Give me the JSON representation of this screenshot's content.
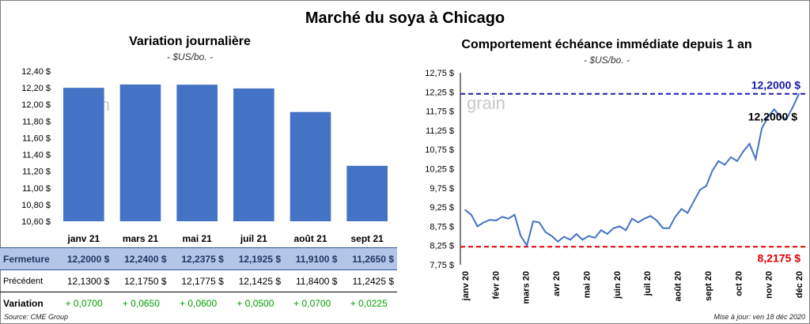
{
  "page": {
    "title": "Marché du soya à Chicago",
    "source": "Source: CME Group",
    "updated": "Mise à jour: ven 18 déc 2020",
    "watermark": "grain"
  },
  "left": {
    "title": "Variation  journalière",
    "units": "- $US/bo. -"
  },
  "right": {
    "title": "Comportement  échéance immédiate depuis 1 an",
    "units": "- $US/bo. -"
  },
  "table": {
    "rows": [
      {
        "label": "Fermeture",
        "cells": [
          "12,2000  $",
          "12,2400  $",
          "12,2375  $",
          "12,1925  $",
          "11,9100  $",
          "11,2650  $"
        ]
      },
      {
        "label": "Précédent",
        "cells": [
          "12,1300  $",
          "12,1750  $",
          "12,1775  $",
          "12,1425  $",
          "11,8400  $",
          "11,2425  $"
        ]
      },
      {
        "label": "Variation",
        "cells": [
          "+ 0,0700",
          "+ 0,0650",
          "+ 0,0600",
          "+ 0,0500",
          "+ 0,0700",
          "+ 0,0225"
        ]
      }
    ]
  },
  "chart_data": [
    {
      "type": "bar",
      "title": "Variation  journalière",
      "subtitle": "- $US/bo. -",
      "categories": [
        "janv 21",
        "mars 21",
        "mai 21",
        "juil 21",
        "août 21",
        "sept 21"
      ],
      "values": [
        12.2,
        12.24,
        12.2375,
        12.1925,
        11.91,
        11.265
      ],
      "ylim": [
        10.6,
        12.4
      ],
      "yticks": [
        "10,60 $",
        "10,80 $",
        "11,00 $",
        "11,20 $",
        "11,40 $",
        "11,60 $",
        "11,80 $",
        "12,00 $",
        "12,20 $",
        "12,40 $"
      ],
      "bar_color": "#4472c4",
      "grid": false
    },
    {
      "type": "line",
      "title": "Comportement  échéance immédiate depuis 1 an",
      "subtitle": "- $US/bo. -",
      "ylim": [
        7.75,
        12.75
      ],
      "yticks": [
        "7,75 $",
        "8,25 $",
        "8,75 $",
        "9,25 $",
        "9,75 $",
        "10,25 $",
        "10,75 $",
        "11,25 $",
        "11,75 $",
        "12,25 $",
        "12,75 $"
      ],
      "xticks": [
        "janv 20",
        "févr 20",
        "mars 20",
        "avr 20",
        "mai 20",
        "juin 20",
        "juil 20",
        "août 20",
        "sept 20",
        "oct 20",
        "nov 20",
        "déc 20"
      ],
      "line_color": "#4472c4",
      "series": [
        {
          "x": [
            0,
            1,
            2,
            3,
            4,
            5,
            6,
            7,
            8,
            9,
            10,
            11,
            12,
            13,
            14,
            15,
            16,
            17,
            18,
            19,
            20,
            21,
            22,
            23,
            24,
            25,
            26,
            27,
            28,
            29,
            30,
            31,
            32,
            33,
            34,
            35,
            36,
            37,
            38,
            39,
            40,
            41,
            42,
            43,
            44,
            45,
            46,
            47,
            48,
            49,
            50,
            51,
            52,
            53,
            54
          ],
          "y": [
            9.18,
            9.05,
            8.75,
            8.85,
            8.92,
            8.9,
            9.0,
            8.95,
            9.05,
            8.5,
            8.25,
            8.88,
            8.85,
            8.6,
            8.5,
            8.35,
            8.48,
            8.4,
            8.55,
            8.4,
            8.5,
            8.45,
            8.65,
            8.55,
            8.7,
            8.75,
            8.65,
            8.95,
            8.85,
            8.95,
            9.02,
            8.9,
            8.7,
            8.7,
            9.0,
            9.2,
            9.1,
            9.4,
            9.7,
            9.8,
            10.2,
            10.45,
            10.35,
            10.55,
            10.45,
            10.7,
            10.9,
            10.5,
            11.3,
            11.6,
            11.8,
            11.6,
            11.55,
            11.85,
            12.2
          ]
        }
      ],
      "annotations": [
        {
          "value": 12.2,
          "label": "12,2000  $",
          "color": "#1a1aa8",
          "style": "dashed"
        },
        {
          "value": 8.2175,
          "label": "8,2175  $",
          "color": "#e00000",
          "style": "dashed"
        },
        {
          "value": 12.2,
          "label": "12,2000 $",
          "color": "#000000",
          "style": "point-label"
        }
      ],
      "grid": false
    }
  ]
}
